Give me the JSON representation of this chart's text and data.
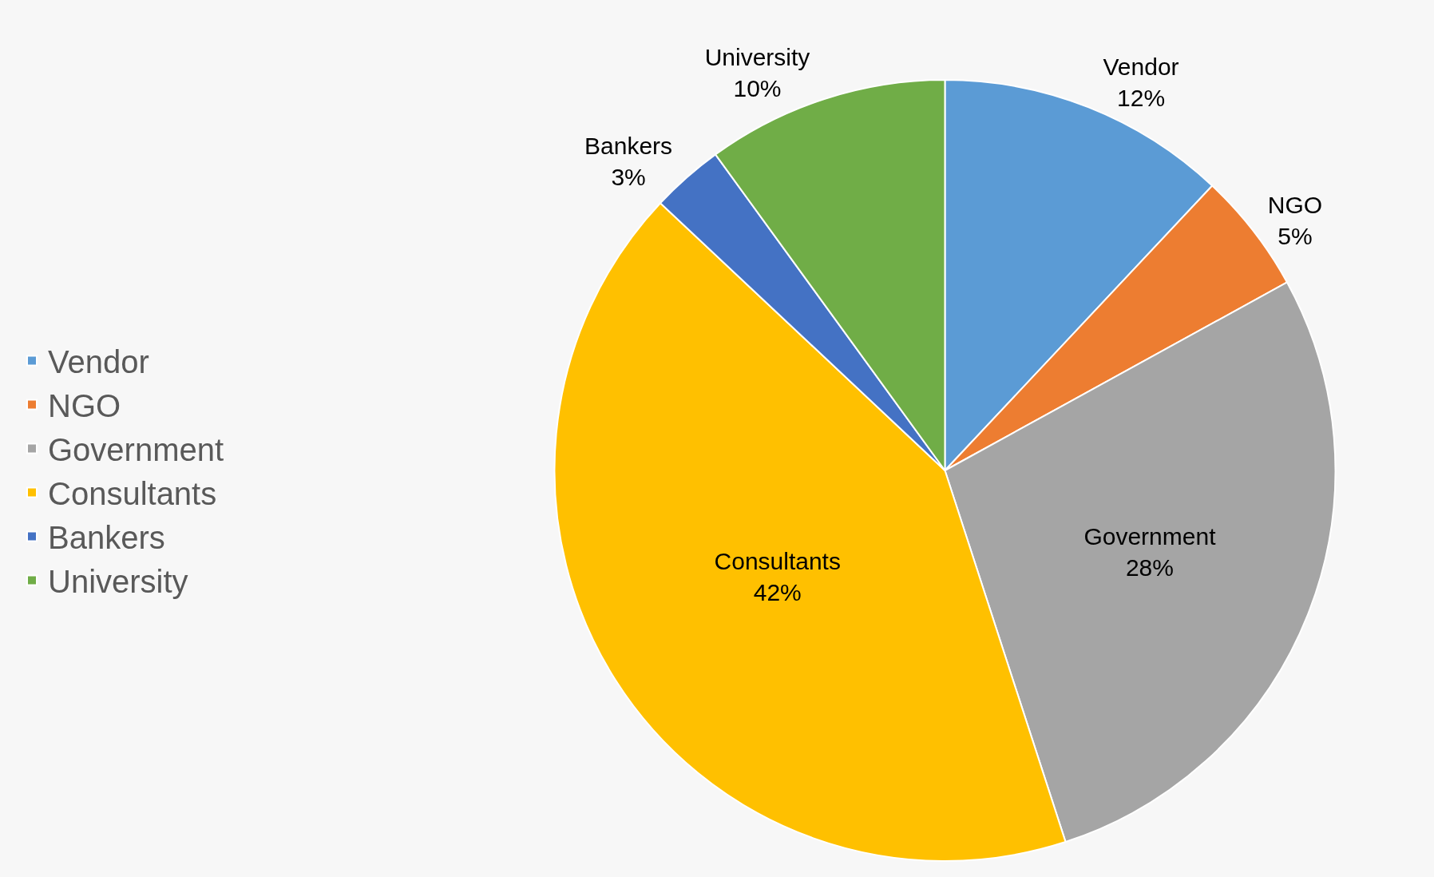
{
  "chart_data": {
    "type": "pie",
    "categories": [
      "Vendor",
      "NGO",
      "Government",
      "Consultants",
      "Bankers",
      "University"
    ],
    "values": [
      12,
      5,
      28,
      42,
      3,
      10
    ],
    "value_labels": [
      "12%",
      "5%",
      "28%",
      "42%",
      "3%",
      "10%"
    ],
    "colors": [
      "#5b9bd5",
      "#ed7d31",
      "#a5a5a5",
      "#ffc000",
      "#4472c4",
      "#70ad47"
    ],
    "legend": "left"
  }
}
